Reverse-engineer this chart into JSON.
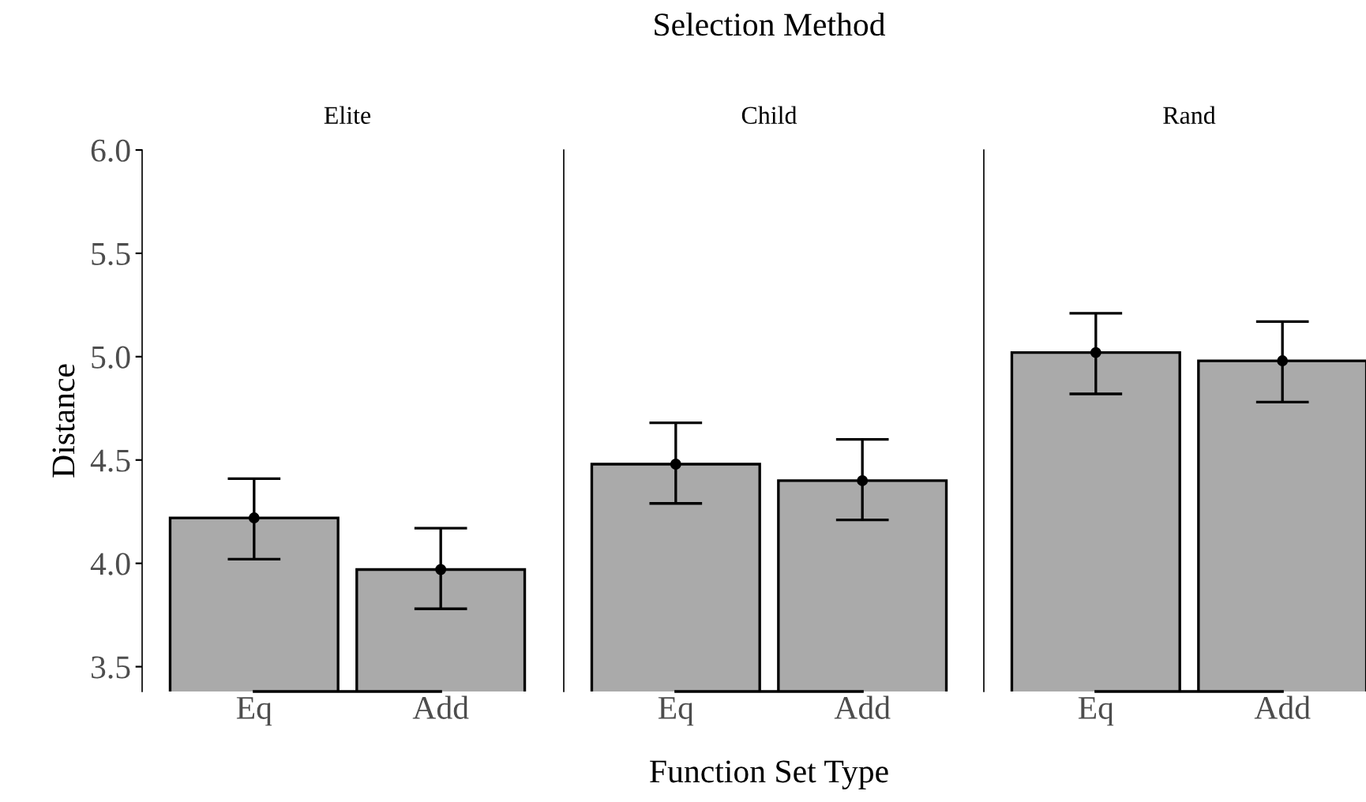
{
  "chart_data": [
    {
      "type": "bar",
      "title": "Elite",
      "ylabel": "Distance",
      "categories": [
        "Eq",
        "Add"
      ],
      "series": [
        {
          "values": [
            4.22,
            3.97
          ],
          "errors": [
            [
              4.02,
              4.41
            ],
            [
              3.78,
              4.17
            ]
          ],
          "color": "#aaaaaa"
        },
        {
          "type": "scatter",
          "x": [
            "Eq",
            "Add"
          ],
          "values": [
            4.22,
            3.97
          ],
          "color": "#000000",
          "marker": "circle"
        }
      ],
      "ylim": [
        3.38,
        6.0
      ],
      "yticks": [
        {
          "value": 3.5,
          "label": "3.5"
        },
        {
          "value": 4.0,
          "label": "4.0"
        },
        {
          "value": 4.5,
          "label": "4.5"
        },
        {
          "value": 5.0,
          "label": "5.0"
        },
        {
          "value": 5.5,
          "label": "5.5"
        },
        {
          "value": 6.0,
          "label": "6.0"
        }
      ]
    },
    {
      "type": "bar",
      "title": "Child",
      "xlabel": "Function Set Type",
      "annotations": [
        "Selection Method"
      ],
      "categories": [
        "Eq",
        "Add"
      ],
      "series": [
        {
          "values": [
            4.48,
            4.4
          ],
          "errors": [
            [
              4.29,
              4.68
            ],
            [
              4.21,
              4.6
            ]
          ],
          "color": "#aaaaaa"
        },
        {
          "type": "scatter",
          "x": [
            "Eq",
            "Add"
          ],
          "values": [
            4.48,
            4.4
          ],
          "color": "#000000",
          "marker": "circle"
        }
      ],
      "ylim": [
        3.38,
        6.0
      ],
      "tick_labels": "x"
    },
    {
      "type": "bar",
      "title": "Rand",
      "categories": [
        "Eq",
        "Add"
      ],
      "series": [
        {
          "values": [
            5.02,
            4.98
          ],
          "errors": [
            [
              4.82,
              5.21
            ],
            [
              4.78,
              5.17
            ]
          ],
          "color": "#aaaaaa"
        },
        {
          "type": "scatter",
          "x": [
            "Eq",
            "Add"
          ],
          "values": [
            5.02,
            4.98
          ],
          "color": "#000000",
          "marker": "circle"
        }
      ],
      "ylim": [
        3.38,
        6.0
      ],
      "tick_labels": "x"
    }
  ]
}
